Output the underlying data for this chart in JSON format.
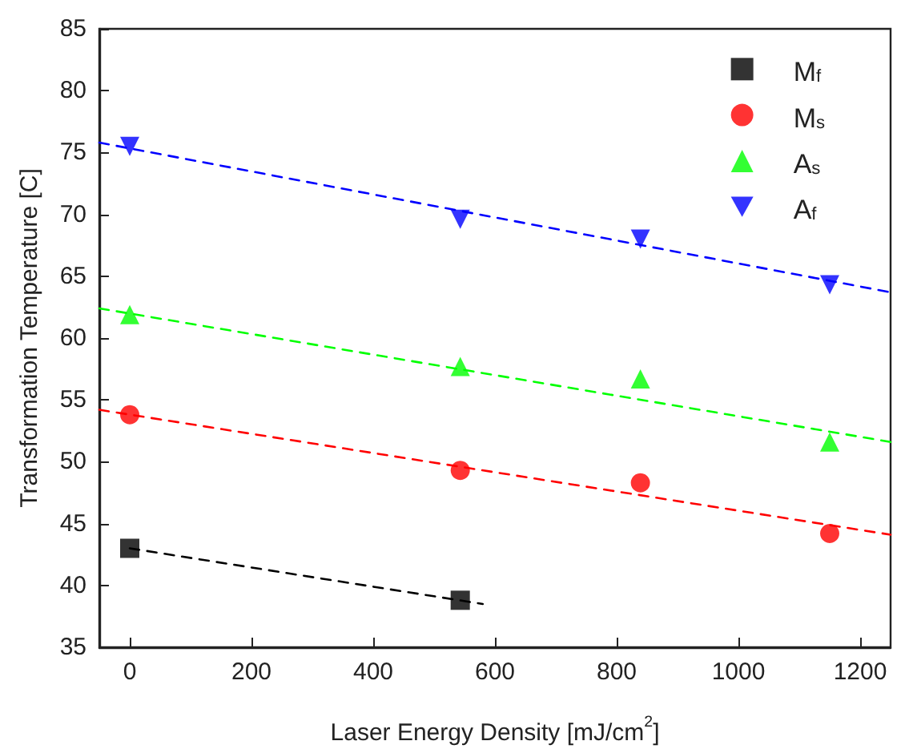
{
  "chart_data": {
    "type": "scatter",
    "xlabel": "Laser Energy Density [mJ/cm$^{2}$]",
    "ylabel": "Transformation Temperature [C]",
    "xlim": [
      -50,
      1250
    ],
    "xticks": [
      0,
      200,
      400,
      600,
      800,
      1000,
      1200
    ],
    "ylim": [
      35,
      85
    ],
    "yticks": [
      35,
      40,
      45,
      50,
      55,
      60,
      65,
      70,
      75,
      80,
      85
    ],
    "legend": "top right",
    "series": [
      {
        "name": "M$_{f}$",
        "marker": "square",
        "color": "#000000",
        "x": [
          0,
          543
        ],
        "values": [
          43.0,
          38.8
        ]
      },
      {
        "name": "M$_{s}$",
        "marker": "circle",
        "color": "#ff0000",
        "x": [
          0,
          543,
          839,
          1150
        ],
        "values": [
          53.8,
          49.3,
          48.3,
          44.2
        ]
      },
      {
        "name": "A$_{s}$",
        "marker": "triangle",
        "color": "#00ff00",
        "x": [
          0,
          543,
          839,
          1150
        ],
        "values": [
          61.9,
          57.7,
          56.7,
          51.6
        ]
      },
      {
        "name": "A$_{f}$",
        "marker": "triangle-down",
        "color": "#0000ff",
        "x": [
          0,
          543,
          839,
          1150
        ],
        "values": [
          75.5,
          69.6,
          68.0,
          64.3
        ]
      },
      {
        "type": "line",
        "line_style": "dashed",
        "marker": "none",
        "color": "#000000",
        "x": [
          0,
          580
        ],
        "values": [
          43.0,
          38.5
        ]
      },
      {
        "type": "line",
        "line_style": "dashed",
        "marker": "none",
        "color": "#ff0000",
        "x": [
          -50,
          1250
        ],
        "values": [
          54.2,
          44.1
        ]
      },
      {
        "type": "line",
        "line_style": "dashed",
        "marker": "none",
        "color": "#00ff00",
        "x": [
          -50,
          1250
        ],
        "values": [
          62.4,
          51.6
        ]
      },
      {
        "type": "line",
        "line_style": "dashed",
        "marker": "none",
        "color": "#0000ff",
        "x": [
          -50,
          1250
        ],
        "values": [
          75.8,
          63.7
        ]
      }
    ]
  }
}
